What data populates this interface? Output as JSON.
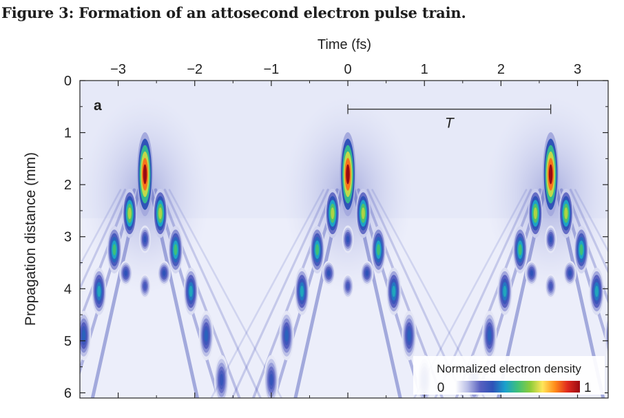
{
  "figure": {
    "title": "Figure 3: Formation of an attosecond electron pulse train."
  },
  "chart_data": {
    "type": "heatmap",
    "panel_label": "a",
    "xlabel": "Time (fs)",
    "ylabel": "Propagation distance (mm)",
    "xlim": [
      -3.5,
      3.4
    ],
    "ylim": [
      6.1,
      0
    ],
    "x_ticks": [
      -3,
      -2,
      -1,
      0,
      1,
      2,
      3
    ],
    "x_tick_labels": [
      "−3",
      "−2",
      "−1",
      "0",
      "1",
      "2",
      "3"
    ],
    "y_ticks": [
      0,
      1,
      2,
      3,
      4,
      5,
      6
    ],
    "y_tick_labels": [
      "0",
      "1",
      "2",
      "3",
      "4",
      "5",
      "6"
    ],
    "period_marker": {
      "label": "T",
      "x_start": 0,
      "x_end": 2.65,
      "y": 0.55
    },
    "pulse_centers_fs": [
      -2.65,
      0,
      2.65
    ],
    "focus": {
      "y_mm": 1.8,
      "peak_value": 1
    },
    "colorbar": {
      "title": "Normalized electron density",
      "min_label": "0",
      "max_label": "1",
      "min": 0,
      "max": 1,
      "colors": [
        "#ffffff",
        "#b8bde6",
        "#5860c0",
        "#2e52b8",
        "#1aa0cc",
        "#3ec07a",
        "#8ccc3a",
        "#ffe65a",
        "#ff8c1a",
        "#e02a1e",
        "#9a0a12"
      ]
    }
  }
}
